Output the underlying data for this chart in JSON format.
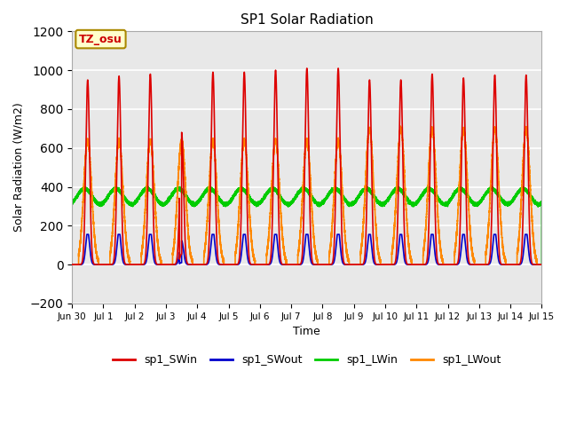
{
  "title": "SP1 Solar Radiation",
  "ylabel": "Solar Radiation (W/m2)",
  "xlabel": "Time",
  "ylim": [
    -200,
    1200
  ],
  "yticks": [
    -200,
    0,
    200,
    400,
    600,
    800,
    1000,
    1200
  ],
  "fig_bg": "#ffffff",
  "plot_bg": "#e8e8e8",
  "colors": {
    "SWin": "#dd0000",
    "SWout": "#0000cc",
    "LWin": "#00cc00",
    "LWout": "#ff8800"
  },
  "annotation_text": "TZ_osu",
  "n_days": 15,
  "tick_labels": [
    "Jun 30",
    "Jul 1",
    "Jul 2",
    "Jul 3",
    "Jul 4",
    "Jul 5",
    "Jul 6",
    "Jul 7",
    "Jul 8",
    "Jul 9",
    "Jul 10",
    "Jul 11",
    "Jul 12",
    "Jul 13",
    "Jul 14",
    "Jul 15"
  ]
}
